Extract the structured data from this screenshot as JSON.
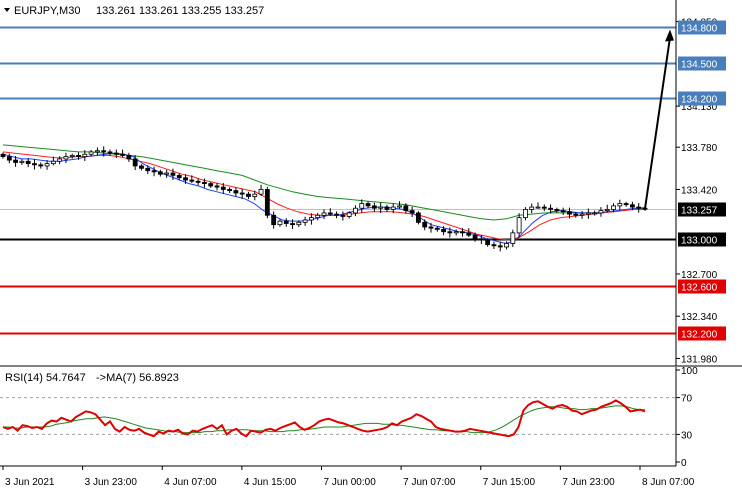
{
  "header": {
    "symbol": "EURJPY,M30",
    "ohlc": "133.261 133.261 133.255 133.257"
  },
  "rsi_header": {
    "label": "RSI(14) 54.7647",
    "ma_label": "->MA(7) 56.8923"
  },
  "colors": {
    "target_lines": "#4a7ebb",
    "support_line": "#000000",
    "lower_lines": "#e00000",
    "ma_fast": "#1f3fff",
    "ma_mid": "#ff2020",
    "ma_slow": "#1e8a1e",
    "rsi": "#e00000",
    "rsi_ma": "#1e8a1e",
    "candle": "#000000"
  },
  "chart_data": [
    {
      "type": "candlestick",
      "title": "EURJPY,M30",
      "y_ticks": [
        "134.850",
        "134.130",
        "133.780",
        "133.420",
        "132.700",
        "132.340",
        "131.980"
      ],
      "x_ticks": [
        "3 Jun 2021",
        "3 Jun 23:00",
        "4 Jun 07:00",
        "4 Jun 15:00",
        "7 Jun 00:00",
        "7 Jun 07:00",
        "7 Jun 15:00",
        "7 Jun 23:00",
        "8 Jun 07:00"
      ],
      "ylim": [
        131.95,
        135.0
      ],
      "price_levels": [
        {
          "name": "target-3",
          "value": 134.8,
          "label": "134.800",
          "style": "target"
        },
        {
          "name": "target-2",
          "value": 134.5,
          "label": "134.500",
          "style": "target"
        },
        {
          "name": "target-1",
          "value": 134.2,
          "label": "134.200",
          "style": "target"
        },
        {
          "name": "current-price",
          "value": 133.257,
          "label": "133.257",
          "style": "current"
        },
        {
          "name": "support",
          "value": 133.0,
          "label": "133.000",
          "style": "support"
        },
        {
          "name": "level-2",
          "value": 132.6,
          "label": "132.600",
          "style": "lower"
        },
        {
          "name": "level-1",
          "value": 132.2,
          "label": "132.200",
          "style": "lower"
        }
      ],
      "close_path": [
        133.7,
        133.67,
        133.65,
        133.66,
        133.64,
        133.63,
        133.62,
        133.64,
        133.66,
        133.68,
        133.7,
        133.71,
        133.7,
        133.72,
        133.74,
        133.75,
        133.74,
        133.73,
        133.72,
        133.71,
        133.68,
        133.62,
        133.6,
        133.58,
        133.57,
        133.55,
        133.56,
        133.54,
        133.52,
        133.5,
        133.49,
        133.48,
        133.47,
        133.45,
        133.44,
        133.42,
        133.41,
        133.39,
        133.38,
        133.36,
        133.38,
        133.42,
        133.2,
        133.12,
        133.15,
        133.13,
        133.12,
        133.14,
        133.16,
        133.18,
        133.2,
        133.22,
        133.21,
        133.2,
        133.19,
        133.22,
        133.26,
        133.3,
        133.28,
        133.26,
        133.27,
        133.25,
        133.27,
        133.28,
        133.24,
        133.22,
        133.14,
        133.1,
        133.09,
        133.08,
        133.06,
        133.05,
        133.06,
        133.05,
        133.03,
        133.0,
        132.99,
        132.95,
        132.94,
        132.93,
        132.96,
        133.05,
        133.18,
        133.25,
        133.27,
        133.27,
        133.26,
        133.25,
        133.24,
        133.23,
        133.21,
        133.2,
        133.21,
        133.22,
        133.22,
        133.24,
        133.25,
        133.28,
        133.3,
        133.29,
        133.27,
        133.26,
        133.257
      ],
      "projection_target": 134.8,
      "ma_fast": [
        133.72,
        133.7,
        133.68,
        133.68,
        133.67,
        133.66,
        133.66,
        133.67,
        133.68,
        133.7,
        133.71,
        133.72,
        133.73,
        133.72,
        133.7,
        133.64,
        133.6,
        133.56,
        133.53,
        133.5,
        133.47,
        133.45,
        133.42,
        133.4,
        133.38,
        133.36,
        133.34,
        133.3,
        133.24,
        133.2,
        133.16,
        133.15,
        133.15,
        133.16,
        133.18,
        133.2,
        133.2,
        133.22,
        133.24,
        133.26,
        133.27,
        133.27,
        133.26,
        133.25,
        133.22,
        133.17,
        133.12,
        133.1,
        133.08,
        133.06,
        133.05,
        133.03,
        133.0,
        132.98,
        132.96,
        132.98,
        133.06,
        133.14,
        133.2,
        133.23,
        133.24,
        133.23,
        133.22,
        133.22,
        133.22,
        133.23,
        133.24,
        133.25,
        133.26,
        133.265
      ],
      "ma_mid": [
        133.74,
        133.73,
        133.72,
        133.71,
        133.7,
        133.69,
        133.69,
        133.7,
        133.7,
        133.71,
        133.71,
        133.7,
        133.68,
        133.66,
        133.64,
        133.61,
        133.58,
        133.55,
        133.53,
        133.5,
        133.48,
        133.46,
        133.44,
        133.42,
        133.4,
        133.35,
        133.3,
        133.26,
        133.23,
        133.21,
        133.2,
        133.2,
        133.2,
        133.21,
        133.22,
        133.23,
        133.23,
        133.23,
        133.22,
        133.21,
        133.19,
        133.16,
        133.13,
        133.1,
        133.07,
        133.04,
        133.02,
        133.0,
        132.99,
        133.01,
        133.06,
        133.12,
        133.16,
        133.18,
        133.19,
        133.2,
        133.21,
        133.22,
        133.23,
        133.24,
        133.25,
        133.25
      ],
      "ma_slow": [
        133.8,
        133.79,
        133.78,
        133.77,
        133.76,
        133.75,
        133.74,
        133.74,
        133.73,
        133.72,
        133.71,
        133.7,
        133.68,
        133.66,
        133.64,
        133.62,
        133.6,
        133.58,
        133.56,
        133.54,
        133.5,
        133.46,
        133.43,
        133.4,
        133.38,
        133.36,
        133.35,
        133.34,
        133.33,
        133.32,
        133.31,
        133.3,
        133.29,
        133.27,
        133.25,
        133.23,
        133.21,
        133.19,
        133.17,
        133.16,
        133.17,
        133.2,
        133.21,
        133.22,
        133.22,
        133.22,
        133.22,
        133.22,
        133.23,
        133.24,
        133.25,
        133.26
      ]
    },
    {
      "type": "line",
      "title": "RSI(14) 54.7647 ->MA(7) 56.8923",
      "y_ticks": [
        "100",
        "70",
        "30",
        "0"
      ],
      "ylim": [
        0,
        100
      ],
      "levels": [
        70,
        30
      ],
      "series": [
        {
          "name": "RSI(14)",
          "values": [
            38,
            36,
            38,
            34,
            40,
            39,
            37,
            38,
            36,
            42,
            45,
            44,
            48,
            46,
            44,
            49,
            52,
            55,
            54,
            52,
            46,
            40,
            44,
            36,
            33,
            38,
            35,
            34,
            36,
            32,
            30,
            28,
            33,
            31,
            34,
            33,
            35,
            31,
            30,
            34,
            33,
            36,
            38,
            40,
            36,
            40,
            30,
            34,
            36,
            31,
            28,
            34,
            33,
            32,
            35,
            36,
            34,
            37,
            39,
            41,
            43,
            38,
            35,
            37,
            40,
            44,
            46,
            47,
            45,
            43,
            42,
            40,
            38,
            36,
            34,
            33,
            34,
            35,
            36,
            38,
            42,
            40,
            44,
            46,
            48,
            52,
            50,
            47,
            44,
            38,
            36,
            35,
            34,
            33,
            33,
            34,
            36,
            35,
            34,
            33,
            32,
            31,
            30,
            29,
            28,
            30,
            38,
            56,
            62,
            65,
            66,
            63,
            60,
            58,
            61,
            62,
            60,
            56,
            55,
            52,
            54,
            56,
            57,
            60,
            62,
            64,
            67,
            64,
            60,
            55,
            56,
            57,
            55
          ]
        },
        {
          "name": "MA(7)",
          "values": [
            38,
            38,
            37,
            37,
            38,
            38,
            38,
            38,
            39,
            41,
            42,
            43,
            45,
            46,
            47,
            47,
            48,
            49,
            48,
            47,
            45,
            43,
            41,
            39,
            37,
            36,
            35,
            34,
            33,
            33,
            32,
            32,
            32,
            32,
            33,
            33,
            34,
            34,
            35,
            35,
            35,
            35,
            34,
            34,
            34,
            33,
            33,
            33,
            34,
            34,
            35,
            35,
            36,
            37,
            38,
            38,
            38,
            38,
            39,
            40,
            41,
            42,
            42,
            42,
            41,
            41,
            40,
            40,
            39,
            38,
            37,
            36,
            35,
            35,
            34,
            34,
            33,
            33,
            33,
            32,
            32,
            32,
            33,
            35,
            38,
            42,
            46,
            50,
            53,
            56,
            58,
            59,
            60,
            60,
            59,
            58,
            58,
            57,
            57,
            58,
            58,
            59,
            60,
            61,
            61,
            60,
            58,
            57,
            57
          ]
        }
      ]
    }
  ]
}
